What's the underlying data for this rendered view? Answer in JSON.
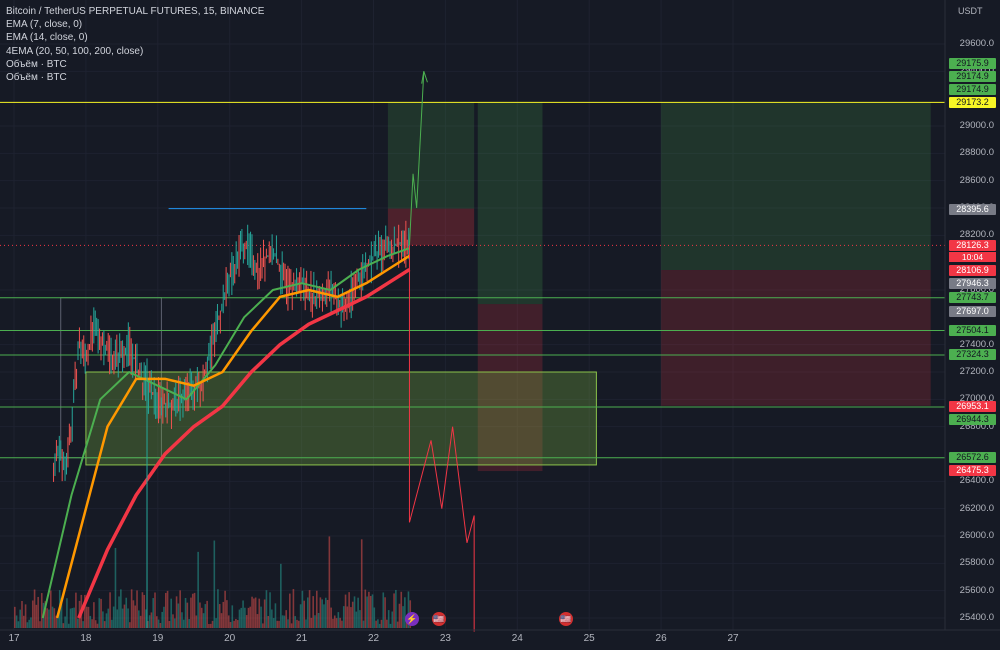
{
  "legend": {
    "symbol": "Bitcoin / TetherUS PERPETUAL FUTURES, 15, BINANCE",
    "ema7": "EMA (7, close, 0)",
    "ema14": "EMA (14, close, 0)",
    "ema4": "4EMA (20, 50, 100, 200, close)",
    "vol1": "Объём · BTC",
    "vol2": "Объём · BTC"
  },
  "currency": "USDT",
  "countdown": "10:04",
  "colors": {
    "background": "#161a25",
    "green_tag": "#4caf50",
    "red_tag": "#f23645",
    "gray_tag": "#787b86",
    "yellow_tag": "#f7f525",
    "ema_fast": "#4caf50",
    "ema_mid": "#ff9800",
    "ema_slow": "#f23645"
  },
  "chart_data": {
    "type": "line",
    "x_ticks": [
      "17",
      "18",
      "19",
      "20",
      "21",
      "22",
      "23",
      "24",
      "25",
      "26",
      "27"
    ],
    "y_ticks": [
      29600,
      29400,
      29000,
      28800,
      28600,
      28400,
      28200,
      27800,
      27400,
      27200,
      27000,
      26800,
      26400,
      26200,
      26000,
      25800,
      25600,
      25400
    ],
    "ylim": [
      25300,
      29800
    ],
    "price_tags": [
      {
        "value": "29175.9",
        "color": "green"
      },
      {
        "value": "29174.9",
        "color": "green"
      },
      {
        "value": "29174.9",
        "color": "green"
      },
      {
        "value": "29173.2",
        "color": "yellow"
      },
      {
        "value": "28395.6",
        "color": "gray"
      },
      {
        "value": "28126.3",
        "color": "red"
      },
      {
        "value": "28106.9",
        "color": "red"
      },
      {
        "value": "27946.3",
        "color": "gray"
      },
      {
        "value": "27743.7",
        "color": "green"
      },
      {
        "value": "27697.0",
        "color": "gray"
      },
      {
        "value": "27504.1",
        "color": "green"
      },
      {
        "value": "27324.3",
        "color": "green"
      },
      {
        "value": "26953.1",
        "color": "red"
      },
      {
        "value": "26944.3",
        "color": "green"
      },
      {
        "value": "26572.6",
        "color": "green"
      },
      {
        "value": "26475.3",
        "color": "red"
      }
    ],
    "horizontal_levels": [
      29173.2,
      27743.7,
      27504.1,
      27324.3,
      26944.3,
      26572.6
    ],
    "series": [
      {
        "role": "price",
        "x": [
          17.55,
          17.6,
          17.7,
          17.8,
          17.9,
          18.0,
          18.1,
          18.2,
          18.4,
          18.6,
          18.8,
          19.0,
          19.2,
          19.4,
          19.6,
          19.8,
          20.0,
          20.2,
          20.4,
          20.6,
          20.8,
          21.0,
          21.2,
          21.4,
          21.6,
          21.8,
          22.0,
          22.2,
          22.4,
          22.5
        ],
        "y": [
          26400,
          26650,
          26500,
          26800,
          27400,
          27300,
          27500,
          27450,
          27300,
          27400,
          27100,
          27000,
          26950,
          27050,
          27100,
          27500,
          27900,
          28150,
          27950,
          28100,
          27800,
          27850,
          27750,
          27800,
          27650,
          27900,
          28050,
          28100,
          28150,
          28126
        ]
      },
      {
        "role": "ema_fast",
        "x": [
          17.4,
          17.8,
          18.2,
          18.6,
          19.0,
          19.4,
          19.8,
          20.2,
          20.6,
          21.0,
          21.4,
          21.8,
          22.2,
          22.5
        ],
        "y": [
          25400,
          26300,
          27000,
          27200,
          27100,
          27000,
          27250,
          27600,
          27800,
          27850,
          27800,
          27950,
          28050,
          28106
        ]
      },
      {
        "role": "ema_mid",
        "x": [
          17.6,
          17.9,
          18.3,
          18.7,
          19.1,
          19.5,
          19.9,
          20.3,
          20.7,
          21.1,
          21.5,
          21.9,
          22.2,
          22.5
        ],
        "y": [
          25400,
          26000,
          26800,
          27150,
          27150,
          27100,
          27200,
          27500,
          27750,
          27800,
          27750,
          27850,
          27950,
          28050
        ]
      },
      {
        "role": "ema_slow",
        "x": [
          17.9,
          18.3,
          18.7,
          19.1,
          19.5,
          19.9,
          20.3,
          20.7,
          21.1,
          21.5,
          21.9,
          22.2,
          22.5
        ],
        "y": [
          25400,
          25900,
          26300,
          26600,
          26800,
          26950,
          27200,
          27400,
          27550,
          27650,
          27750,
          27850,
          27950
        ]
      }
    ]
  }
}
